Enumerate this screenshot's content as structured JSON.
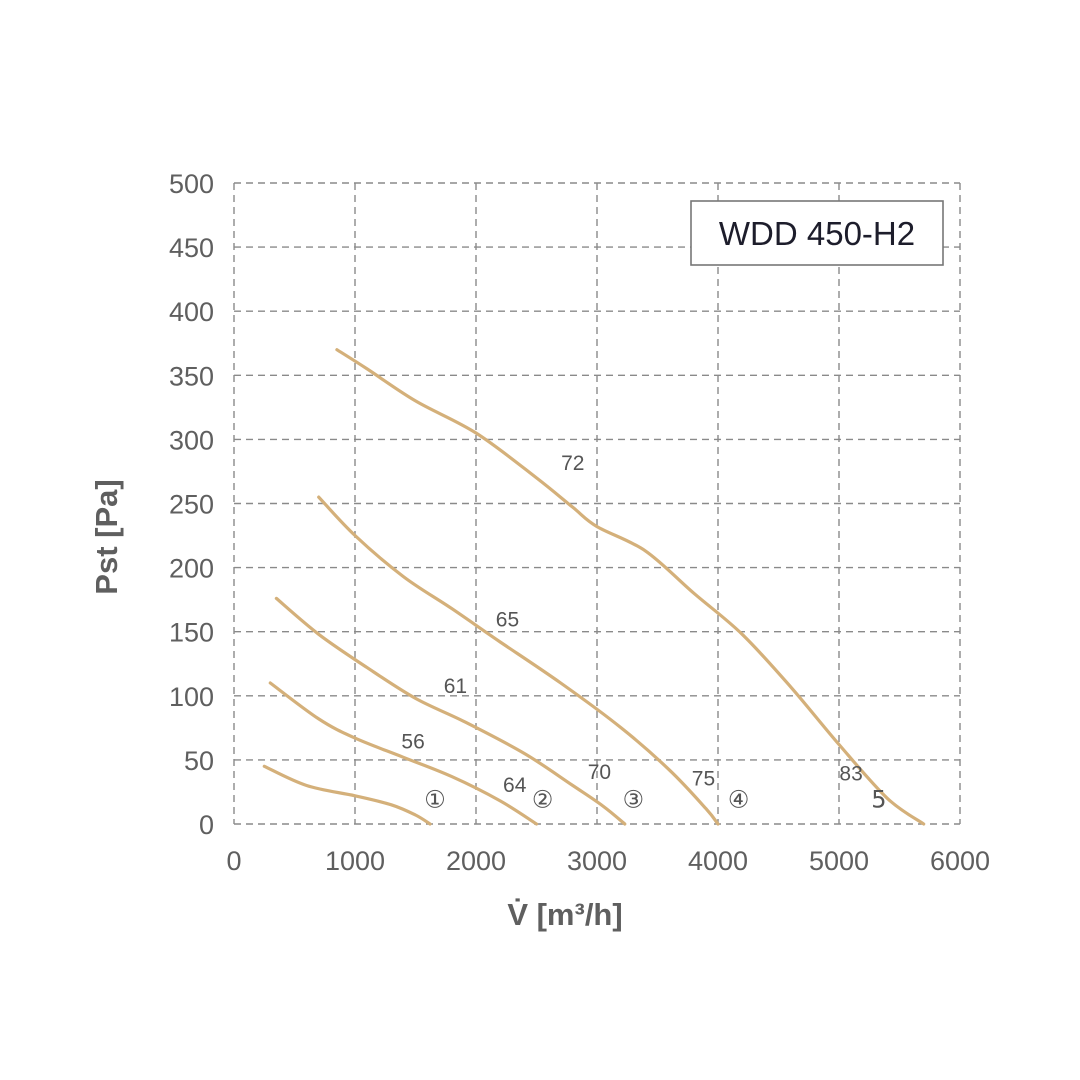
{
  "chart_data": {
    "type": "line",
    "title": "WDD 450-H2",
    "xlabel": "V̇ [m³/h]",
    "ylabel": "Pst [Pa]",
    "xlim": [
      0,
      6000
    ],
    "ylim": [
      0,
      500
    ],
    "x_ticks": [
      "0",
      "1000",
      "2000",
      "3000",
      "4000",
      "5000",
      "6000"
    ],
    "y_ticks": [
      "0",
      "50",
      "100",
      "150",
      "200",
      "250",
      "300",
      "350",
      "400",
      "450",
      "500"
    ],
    "grid": true,
    "colors": {
      "curve": "#d4b07a",
      "grid": "#8a8a8a",
      "text": "#5f5f5f"
    },
    "series": [
      {
        "number": "①",
        "points": [
          [
            250,
            45
          ],
          [
            600,
            30
          ],
          [
            1000,
            22
          ],
          [
            1300,
            15
          ],
          [
            1500,
            7
          ],
          [
            1620,
            0
          ]
        ],
        "labels": []
      },
      {
        "number": "②",
        "points": [
          [
            300,
            110
          ],
          [
            700,
            82
          ],
          [
            1000,
            67
          ],
          [
            1400,
            52
          ],
          [
            1800,
            37
          ],
          [
            2200,
            18
          ],
          [
            2500,
            0
          ]
        ],
        "labels": [
          {
            "text": "56",
            "x": 1480,
            "y": 59
          },
          {
            "text": "64",
            "x": 2320,
            "y": 25
          }
        ]
      },
      {
        "number": "③",
        "points": [
          [
            350,
            176
          ],
          [
            700,
            148
          ],
          [
            1100,
            122
          ],
          [
            1500,
            98
          ],
          [
            1900,
            80
          ],
          [
            2400,
            55
          ],
          [
            2800,
            30
          ],
          [
            3050,
            14
          ],
          [
            3230,
            0
          ]
        ],
        "labels": [
          {
            "text": "61",
            "x": 1830,
            "y": 102
          },
          {
            "text": "70",
            "x": 3020,
            "y": 35
          }
        ]
      },
      {
        "number": "④",
        "points": [
          [
            700,
            255
          ],
          [
            1000,
            225
          ],
          [
            1400,
            193
          ],
          [
            1800,
            168
          ],
          [
            2200,
            142
          ],
          [
            2700,
            110
          ],
          [
            3200,
            75
          ],
          [
            3600,
            42
          ],
          [
            3900,
            12
          ],
          [
            4000,
            0
          ]
        ],
        "labels": [
          {
            "text": "65",
            "x": 2260,
            "y": 154
          },
          {
            "text": "75",
            "x": 3880,
            "y": 30
          }
        ]
      },
      {
        "number": "5",
        "points": [
          [
            850,
            370
          ],
          [
            1100,
            355
          ],
          [
            1500,
            330
          ],
          [
            2000,
            305
          ],
          [
            2500,
            270
          ],
          [
            2800,
            247
          ],
          [
            3000,
            232
          ],
          [
            3400,
            213
          ],
          [
            3800,
            180
          ],
          [
            4200,
            148
          ],
          [
            4600,
            107
          ],
          [
            5000,
            62
          ],
          [
            5400,
            20
          ],
          [
            5700,
            0
          ]
        ],
        "labels": [
          {
            "text": "72",
            "x": 2800,
            "y": 276
          },
          {
            "text": "83",
            "x": 5100,
            "y": 34
          }
        ]
      }
    ],
    "number_labels": [
      {
        "text": "①",
        "x": 1660,
        "y": 19
      },
      {
        "text": "②",
        "x": 2550,
        "y": 19
      },
      {
        "text": "③",
        "x": 3300,
        "y": 19
      },
      {
        "text": "④",
        "x": 4170,
        "y": 19
      },
      {
        "text": "5",
        "x": 5330,
        "y": 19
      }
    ]
  }
}
